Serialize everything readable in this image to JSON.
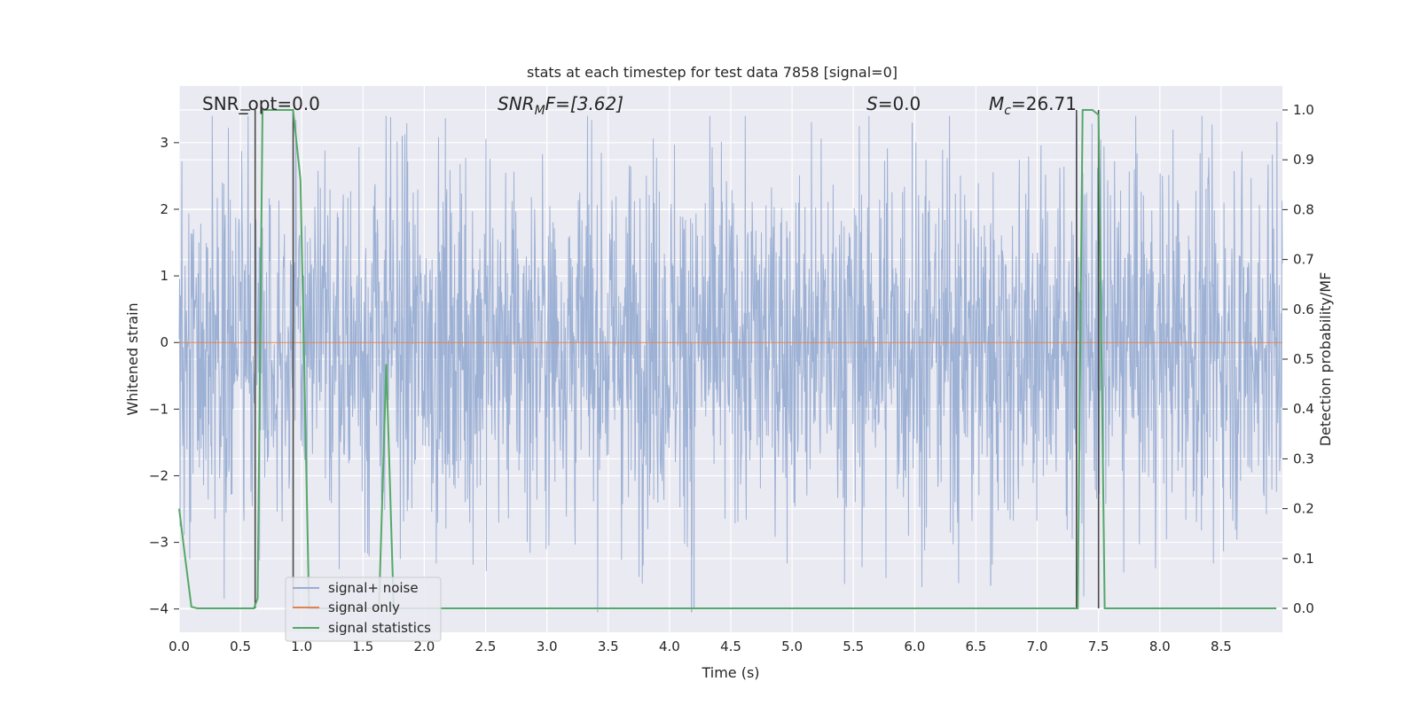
{
  "chart_data": {
    "type": "line",
    "title": "stats at each timestep for test data 7858 [signal=0]",
    "xlabel": "Time (s)",
    "ylabel_left": "Whitened strain",
    "ylabel_right": "Detection probability/MF",
    "xlim": [
      0.0,
      9.0
    ],
    "ylim_left": [
      -4.35,
      3.85
    ],
    "ylim_right": [
      -0.048,
      1.048
    ],
    "x_ticks": [
      "0.0",
      "0.5",
      "1.0",
      "1.5",
      "2.0",
      "2.5",
      "3.0",
      "3.5",
      "4.0",
      "4.5",
      "5.0",
      "5.5",
      "6.0",
      "6.5",
      "7.0",
      "7.5",
      "8.0",
      "8.5"
    ],
    "y_ticks_left": [
      "−4",
      "−3",
      "−2",
      "−1",
      "0",
      "1",
      "2",
      "3"
    ],
    "y_ticks_right": [
      "0.0",
      "0.1",
      "0.2",
      "0.3",
      "0.4",
      "0.5",
      "0.6",
      "0.7",
      "0.8",
      "0.9",
      "1.0"
    ],
    "grid": true,
    "legend_position": "lower-left",
    "annotations": {
      "snr_opt": "SNR_opt=0.0",
      "snr_mf": "SNR",
      "snr_mf_sub": "M",
      "snr_mf_rest": "F=[3.62]",
      "s_label": "S",
      "s_value": "=0.0",
      "mc_label": "M",
      "mc_sub": "c",
      "mc_value": "=26.71"
    },
    "series": [
      {
        "name": "signal+ noise",
        "color": "#99aed3",
        "description_values": "whitened strain noise, approximately in range -3.6 to 3.4",
        "amplitude_typical": 1.6,
        "max": 3.4,
        "min": -4.05
      },
      {
        "name": "signal only",
        "color": "#dd8452",
        "values_constant": 0.0
      },
      {
        "name": "signal statistics",
        "color": "#55a868",
        "axis": "right",
        "x": [
          0.0,
          0.05,
          0.1,
          0.15,
          0.55,
          0.61,
          0.64,
          0.68,
          0.9,
          0.93,
          0.99,
          1.06,
          1.5,
          1.63,
          1.69,
          1.75,
          1.85,
          7.3,
          7.33,
          7.37,
          7.45,
          7.5,
          7.55,
          7.62,
          8.95
        ],
        "y": [
          0.2,
          0.1,
          0.003,
          0.0,
          0.0,
          0.0,
          0.02,
          1.0,
          1.0,
          1.0,
          0.86,
          0.0,
          0.0,
          0.0,
          0.49,
          0.0,
          0.0,
          0.0,
          0.0,
          1.0,
          1.0,
          0.99,
          0.0,
          0.0,
          0.0
        ]
      }
    ],
    "vertical_lines_x": [
      0.62,
      0.93,
      7.32,
      7.5
    ]
  },
  "legend": {
    "items": [
      {
        "label": "signal+ noise",
        "color": "#99aed3"
      },
      {
        "label": "signal only",
        "color": "#dd8452"
      },
      {
        "label": "signal statistics",
        "color": "#55a868"
      }
    ]
  },
  "colors": {
    "axes_bg": "#eaeaf2",
    "grid": "#ffffff",
    "vline": "#4a4a4a"
  }
}
